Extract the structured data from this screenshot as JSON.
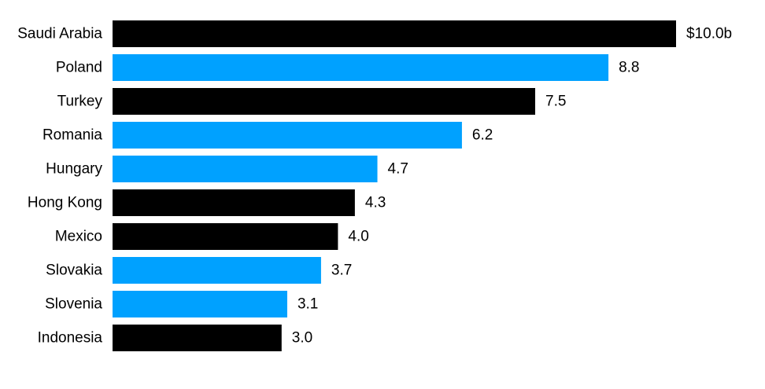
{
  "chart_data": {
    "type": "bar",
    "orientation": "horizontal",
    "categories": [
      "Saudi Arabia",
      "Poland",
      "Turkey",
      "Romania",
      "Hungary",
      "Hong Kong",
      "Mexico",
      "Slovakia",
      "Slovenia",
      "Indonesia"
    ],
    "values": [
      10.0,
      8.8,
      7.5,
      6.2,
      4.7,
      4.3,
      4.0,
      3.7,
      3.1,
      3.0
    ],
    "value_labels": [
      "$10.0b",
      "8.8",
      "7.5",
      "6.2",
      "4.7",
      "4.3",
      "4.0",
      "3.7",
      "3.1",
      "3.0"
    ],
    "bar_colors": [
      "#000000",
      "#00a1ff",
      "#000000",
      "#00a1ff",
      "#00a1ff",
      "#000000",
      "#000000",
      "#00a1ff",
      "#00a1ff",
      "#000000"
    ],
    "title": "",
    "xlabel": "",
    "ylabel": "",
    "xlim": [
      0,
      10.0
    ],
    "grid": false,
    "legend": "none"
  },
  "colors": {
    "dark": "#000000",
    "accent": "#00a1ff",
    "background": "#ffffff"
  }
}
